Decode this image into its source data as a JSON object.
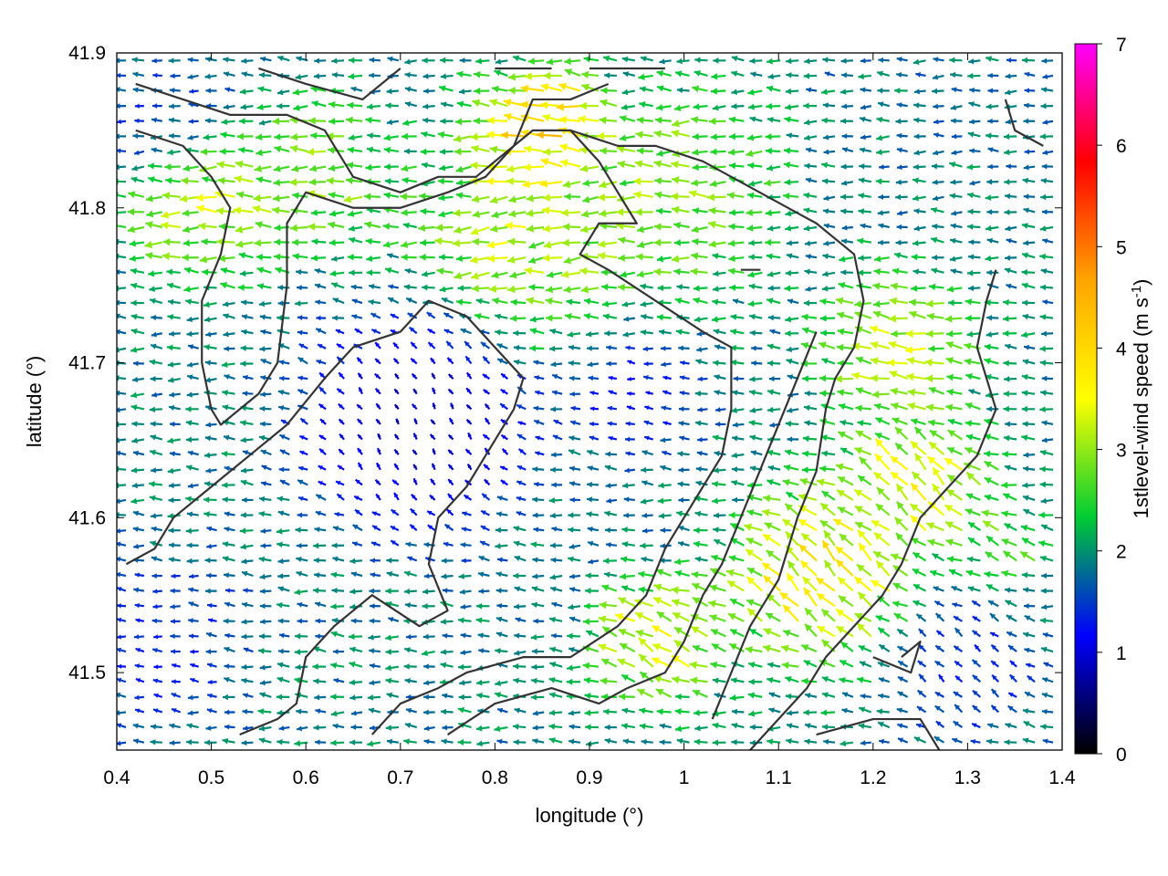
{
  "chart_data": {
    "type": "quiver",
    "xlabel": "longitude (°)",
    "ylabel": "latitude (°)",
    "xlim": [
      0.4,
      1.4
    ],
    "ylim": [
      41.45,
      41.9
    ],
    "xticks": [
      "0.4",
      "0.5",
      "0.6",
      "0.7",
      "0.8",
      "0.9",
      "1",
      "1.1",
      "1.2",
      "1.3",
      "1.4"
    ],
    "yticks": [
      "41.5",
      "41.6",
      "41.7",
      "41.8",
      "41.9"
    ],
    "grid": false,
    "colorbar": {
      "label_main": "1stlevel-wind speed (m s",
      "label_sup": "-1",
      "label_close": ")",
      "range": [
        0,
        7
      ],
      "ticks": [
        "0",
        "1",
        "2",
        "3",
        "4",
        "5",
        "6",
        "7"
      ],
      "colors": [
        "#000000",
        "#0000ff",
        "#00cc33",
        "#ffff00",
        "#ffa500",
        "#ff0000",
        "#ff00ff"
      ]
    },
    "contours": [
      [
        [
          0.42,
          41.88
        ],
        [
          0.47,
          41.87
        ],
        [
          0.52,
          41.86
        ],
        [
          0.58,
          41.86
        ],
        [
          0.62,
          41.85
        ],
        [
          0.65,
          41.82
        ],
        [
          0.7,
          41.81
        ],
        [
          0.74,
          41.82
        ],
        [
          0.78,
          41.82
        ],
        [
          0.82,
          41.84
        ],
        [
          0.84,
          41.87
        ],
        [
          0.88,
          41.87
        ],
        [
          0.92,
          41.88
        ]
      ],
      [
        [
          0.42,
          41.85
        ],
        [
          0.47,
          41.84
        ],
        [
          0.5,
          41.82
        ],
        [
          0.52,
          41.8
        ],
        [
          0.51,
          41.77
        ],
        [
          0.49,
          41.74
        ],
        [
          0.49,
          41.7
        ],
        [
          0.5,
          41.67
        ],
        [
          0.51,
          41.66
        ],
        [
          0.55,
          41.68
        ],
        [
          0.57,
          41.7
        ],
        [
          0.58,
          41.75
        ],
        [
          0.58,
          41.79
        ],
        [
          0.6,
          41.81
        ],
        [
          0.65,
          41.8
        ],
        [
          0.7,
          41.8
        ],
        [
          0.75,
          41.81
        ],
        [
          0.79,
          41.82
        ],
        [
          0.82,
          41.84
        ],
        [
          0.84,
          41.85
        ],
        [
          0.88,
          41.85
        ],
        [
          0.93,
          41.84
        ],
        [
          0.97,
          41.84
        ],
        [
          1.02,
          41.83
        ],
        [
          1.08,
          41.81
        ],
        [
          1.14,
          41.79
        ],
        [
          1.18,
          41.77
        ],
        [
          1.19,
          41.74
        ],
        [
          1.18,
          41.71
        ],
        [
          1.16,
          41.69
        ],
        [
          1.15,
          41.67
        ],
        [
          1.14,
          41.63
        ],
        [
          1.12,
          41.6
        ],
        [
          1.1,
          41.56
        ],
        [
          1.07,
          41.53
        ],
        [
          1.05,
          41.5
        ],
        [
          1.03,
          41.47
        ]
      ],
      [
        [
          1.33,
          41.76
        ],
        [
          1.32,
          41.74
        ],
        [
          1.31,
          41.71
        ],
        [
          1.32,
          41.69
        ],
        [
          1.33,
          41.67
        ],
        [
          1.31,
          41.64
        ],
        [
          1.28,
          41.62
        ],
        [
          1.25,
          41.6
        ],
        [
          1.23,
          41.57
        ],
        [
          1.21,
          41.55
        ],
        [
          1.18,
          41.53
        ],
        [
          1.15,
          41.51
        ],
        [
          1.13,
          41.49
        ],
        [
          1.1,
          41.47
        ],
        [
          1.07,
          41.45
        ]
      ],
      [
        [
          0.41,
          41.57
        ],
        [
          0.44,
          41.58
        ],
        [
          0.46,
          41.6
        ],
        [
          0.5,
          41.62
        ],
        [
          0.54,
          41.64
        ],
        [
          0.58,
          41.66
        ],
        [
          0.62,
          41.69
        ],
        [
          0.65,
          41.71
        ],
        [
          0.7,
          41.72
        ],
        [
          0.73,
          41.74
        ],
        [
          0.77,
          41.73
        ],
        [
          0.8,
          41.71
        ],
        [
          0.83,
          41.69
        ],
        [
          0.82,
          41.67
        ],
        [
          0.8,
          41.65
        ],
        [
          0.77,
          41.62
        ],
        [
          0.74,
          41.6
        ],
        [
          0.73,
          41.57
        ],
        [
          0.75,
          41.54
        ],
        [
          0.72,
          41.53
        ],
        [
          0.67,
          41.55
        ],
        [
          0.63,
          41.53
        ],
        [
          0.6,
          41.51
        ],
        [
          0.59,
          41.48
        ],
        [
          0.57,
          41.47
        ],
        [
          0.53,
          41.46
        ]
      ],
      [
        [
          0.88,
          41.85
        ],
        [
          0.91,
          41.83
        ],
        [
          0.93,
          41.81
        ],
        [
          0.95,
          41.79
        ],
        [
          0.91,
          41.79
        ],
        [
          0.89,
          41.77
        ],
        [
          0.92,
          41.76
        ],
        [
          0.97,
          41.74
        ],
        [
          1.02,
          41.72
        ],
        [
          1.05,
          41.71
        ],
        [
          1.05,
          41.67
        ],
        [
          1.04,
          41.64
        ],
        [
          1.01,
          41.61
        ],
        [
          0.98,
          41.58
        ],
        [
          0.96,
          41.55
        ],
        [
          0.93,
          41.53
        ],
        [
          0.88,
          41.51
        ],
        [
          0.83,
          41.51
        ],
        [
          0.77,
          41.5
        ],
        [
          0.74,
          41.49
        ],
        [
          0.7,
          41.48
        ],
        [
          0.67,
          41.46
        ]
      ],
      [
        [
          0.94,
          41.49
        ],
        [
          0.98,
          41.5
        ],
        [
          1.0,
          41.52
        ],
        [
          1.02,
          41.55
        ],
        [
          1.04,
          41.57
        ],
        [
          1.06,
          41.6
        ],
        [
          1.08,
          41.63
        ],
        [
          1.1,
          41.66
        ],
        [
          1.12,
          41.69
        ],
        [
          1.14,
          41.72
        ]
      ],
      [
        [
          0.75,
          41.46
        ],
        [
          0.8,
          41.48
        ],
        [
          0.86,
          41.49
        ],
        [
          0.91,
          41.48
        ],
        [
          0.94,
          41.49
        ]
      ],
      [
        [
          1.2,
          41.51
        ],
        [
          1.24,
          41.5
        ],
        [
          1.25,
          41.52
        ],
        [
          1.23,
          41.51
        ]
      ],
      [
        [
          1.14,
          41.46
        ],
        [
          1.2,
          41.47
        ],
        [
          1.25,
          41.47
        ],
        [
          1.27,
          41.45
        ]
      ],
      [
        [
          1.34,
          41.87
        ],
        [
          1.35,
          41.85
        ],
        [
          1.38,
          41.84
        ]
      ],
      [
        [
          0.55,
          41.89
        ],
        [
          0.6,
          41.88
        ],
        [
          0.66,
          41.87
        ],
        [
          0.7,
          41.89
        ]
      ],
      [
        [
          0.8,
          41.89
        ],
        [
          0.86,
          41.89
        ]
      ],
      [
        [
          0.9,
          41.89
        ],
        [
          0.98,
          41.89
        ]
      ],
      [
        [
          1.06,
          41.76
        ],
        [
          1.08,
          41.76
        ],
        [
          1.06,
          41.76
        ]
      ]
    ],
    "wind_clusters": [
      {
        "lon": 0.5,
        "lat": 41.8,
        "r": 0.06,
        "speed": 3.5,
        "dir": 180
      },
      {
        "lon": 0.62,
        "lat": 41.82,
        "r": 0.06,
        "speed": 3.2,
        "dir": 180
      },
      {
        "lon": 0.86,
        "lat": 41.85,
        "r": 0.05,
        "speed": 4.8,
        "dir": 160
      },
      {
        "lon": 0.84,
        "lat": 41.79,
        "r": 0.09,
        "speed": 3.5,
        "dir": 190
      },
      {
        "lon": 1.0,
        "lat": 41.81,
        "r": 0.08,
        "speed": 3.2,
        "dir": 180
      },
      {
        "lon": 1.23,
        "lat": 41.71,
        "r": 0.06,
        "speed": 3.6,
        "dir": 170
      },
      {
        "lon": 1.15,
        "lat": 41.56,
        "r": 0.07,
        "speed": 4.2,
        "dir": 120
      },
      {
        "lon": 1.25,
        "lat": 41.62,
        "r": 0.06,
        "speed": 3.8,
        "dir": 120
      },
      {
        "lon": 0.98,
        "lat": 41.52,
        "r": 0.05,
        "speed": 3.8,
        "dir": 140
      },
      {
        "lon": 1.35,
        "lat": 41.58,
        "r": 0.03,
        "speed": 3.0,
        "dir": 140
      },
      {
        "lon": 0.72,
        "lat": 41.66,
        "r": 0.09,
        "speed": 0.4,
        "dir": 100
      },
      {
        "lon": 0.95,
        "lat": 41.68,
        "r": 0.05,
        "speed": 1.0,
        "dir": 170
      },
      {
        "lon": 0.45,
        "lat": 41.52,
        "r": 0.07,
        "speed": 1.2,
        "dir": 170
      },
      {
        "lon": 1.3,
        "lat": 41.5,
        "r": 0.06,
        "speed": 1.2,
        "dir": 120
      },
      {
        "lon": 0.45,
        "lat": 41.86,
        "r": 0.06,
        "speed": 1.4,
        "dir": 180
      },
      {
        "lon": 1.3,
        "lat": 41.88,
        "r": 0.08,
        "speed": 1.8,
        "dir": 180
      }
    ]
  }
}
